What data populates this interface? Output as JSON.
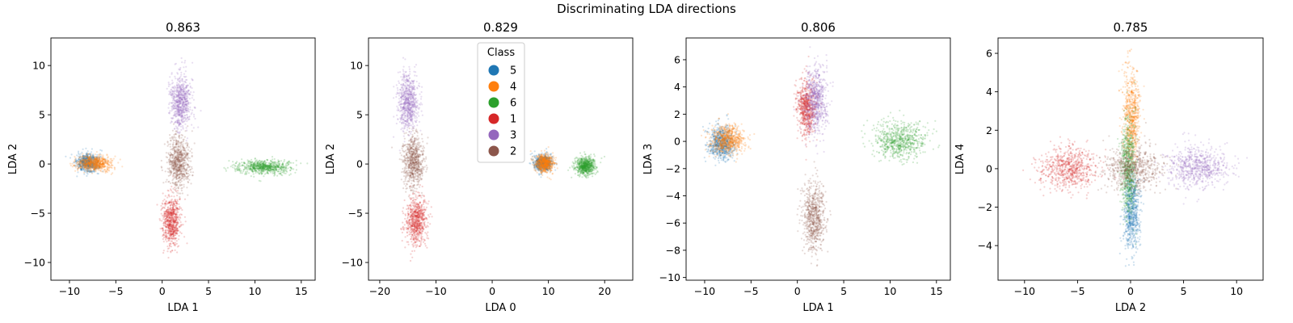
{
  "figure": {
    "title": "Discriminating LDA directions"
  },
  "legend": {
    "title": "Class",
    "entries": [
      {
        "label": "5",
        "color": "#1f77b4"
      },
      {
        "label": "4",
        "color": "#ff7f0e"
      },
      {
        "label": "6",
        "color": "#2ca02c"
      },
      {
        "label": "1",
        "color": "#d62728"
      },
      {
        "label": "3",
        "color": "#9467bd"
      },
      {
        "label": "2",
        "color": "#8c564b"
      }
    ]
  },
  "chart_data": [
    {
      "type": "scatter",
      "title": "0.863",
      "xlabel": "LDA 1",
      "ylabel": "LDA 2",
      "xlim": [
        -12,
        16.5
      ],
      "ylim": [
        -11.8,
        12.8
      ],
      "xticks": [
        -10,
        -5,
        0,
        5,
        10,
        15
      ],
      "yticks": [
        -10,
        -5,
        0,
        5,
        10
      ],
      "grid": false,
      "clusters": [
        {
          "class": "5",
          "color": "#1f77b4",
          "center": [
            -8,
            0.1
          ],
          "spread": [
            0.6,
            0.45
          ]
        },
        {
          "class": "4",
          "color": "#ff7f0e",
          "center": [
            -7.3,
            0.1
          ],
          "spread": [
            0.9,
            0.4
          ]
        },
        {
          "class": "6",
          "color": "#2ca02c",
          "center": [
            11,
            -0.3
          ],
          "spread": [
            1.4,
            0.35
          ]
        },
        {
          "class": "1",
          "color": "#d62728",
          "center": [
            1,
            -5.8
          ],
          "spread": [
            0.5,
            1.2
          ]
        },
        {
          "class": "3",
          "color": "#9467bd",
          "center": [
            2,
            6.3
          ],
          "spread": [
            0.55,
            1.4
          ]
        },
        {
          "class": "2",
          "color": "#8c564b",
          "center": [
            1.8,
            0.2
          ],
          "spread": [
            0.6,
            1.3
          ]
        }
      ]
    },
    {
      "type": "scatter",
      "title": "0.829",
      "xlabel": "LDA 0",
      "ylabel": "LDA 2",
      "xlim": [
        -22,
        25
      ],
      "ylim": [
        -11.8,
        12.8
      ],
      "xticks": [
        -20,
        -10,
        0,
        10,
        20
      ],
      "yticks": [
        -10,
        -5,
        0,
        5,
        10
      ],
      "grid": false,
      "legend_position": "upper center",
      "clusters": [
        {
          "class": "5",
          "color": "#1f77b4",
          "center": [
            9,
            0.1
          ],
          "spread": [
            0.8,
            0.4
          ]
        },
        {
          "class": "4",
          "color": "#ff7f0e",
          "center": [
            9.3,
            0.1
          ],
          "spread": [
            0.8,
            0.45
          ]
        },
        {
          "class": "6",
          "color": "#2ca02c",
          "center": [
            16.5,
            -0.2
          ],
          "spread": [
            0.9,
            0.45
          ]
        },
        {
          "class": "1",
          "color": "#d62728",
          "center": [
            -13.5,
            -5.8
          ],
          "spread": [
            0.9,
            1.2
          ]
        },
        {
          "class": "3",
          "color": "#9467bd",
          "center": [
            -15,
            6.3
          ],
          "spread": [
            0.9,
            1.4
          ]
        },
        {
          "class": "2",
          "color": "#8c564b",
          "center": [
            -14,
            0.2
          ],
          "spread": [
            0.9,
            1.3
          ]
        }
      ]
    },
    {
      "type": "scatter",
      "title": "0.806",
      "xlabel": "LDA 1",
      "ylabel": "LDA 3",
      "xlim": [
        -12,
        16.5
      ],
      "ylim": [
        -10.2,
        7.6
      ],
      "xticks": [
        -10,
        -5,
        0,
        5,
        10,
        15
      ],
      "yticks": [
        -10,
        -8,
        -6,
        -4,
        -2,
        0,
        2,
        4,
        6
      ],
      "grid": false,
      "clusters": [
        {
          "class": "5",
          "color": "#1f77b4",
          "center": [
            -8.2,
            -0.1
          ],
          "spread": [
            0.7,
            0.6
          ]
        },
        {
          "class": "4",
          "color": "#ff7f0e",
          "center": [
            -7.5,
            0.1
          ],
          "spread": [
            0.9,
            0.5
          ]
        },
        {
          "class": "6",
          "color": "#2ca02c",
          "center": [
            11,
            0.1
          ],
          "spread": [
            1.4,
            0.7
          ]
        },
        {
          "class": "1",
          "color": "#d62728",
          "center": [
            1,
            2.5
          ],
          "spread": [
            0.5,
            1.0
          ]
        },
        {
          "class": "3",
          "color": "#9467bd",
          "center": [
            2,
            3
          ],
          "spread": [
            0.6,
            1.2
          ]
        },
        {
          "class": "2",
          "color": "#8c564b",
          "center": [
            1.8,
            -5.5
          ],
          "spread": [
            0.6,
            1.3
          ]
        }
      ]
    },
    {
      "type": "scatter",
      "title": "0.785",
      "xlabel": "LDA 2",
      "ylabel": "LDA 4",
      "xlim": [
        -12.5,
        12.5
      ],
      "ylim": [
        -5.8,
        6.8
      ],
      "xticks": [
        -10,
        -5,
        0,
        5,
        10
      ],
      "yticks": [
        -4,
        -2,
        0,
        2,
        4,
        6
      ],
      "grid": false,
      "clusters": [
        {
          "class": "5",
          "color": "#1f77b4",
          "center": [
            0.1,
            -2.2
          ],
          "spread": [
            0.4,
            1.0
          ]
        },
        {
          "class": "4",
          "color": "#ff7f0e",
          "center": [
            0.1,
            2.8
          ],
          "spread": [
            0.4,
            1.2
          ]
        },
        {
          "class": "6",
          "color": "#2ca02c",
          "center": [
            -0.2,
            0
          ],
          "spread": [
            0.35,
            1.2
          ]
        },
        {
          "class": "1",
          "color": "#d62728",
          "center": [
            -5.8,
            0
          ],
          "spread": [
            1.3,
            0.55
          ]
        },
        {
          "class": "3",
          "color": "#9467bd",
          "center": [
            6.3,
            0.1
          ],
          "spread": [
            1.5,
            0.55
          ]
        },
        {
          "class": "2",
          "color": "#8c564b",
          "center": [
            0.2,
            0.1
          ],
          "spread": [
            1.3,
            0.6
          ]
        }
      ]
    }
  ]
}
